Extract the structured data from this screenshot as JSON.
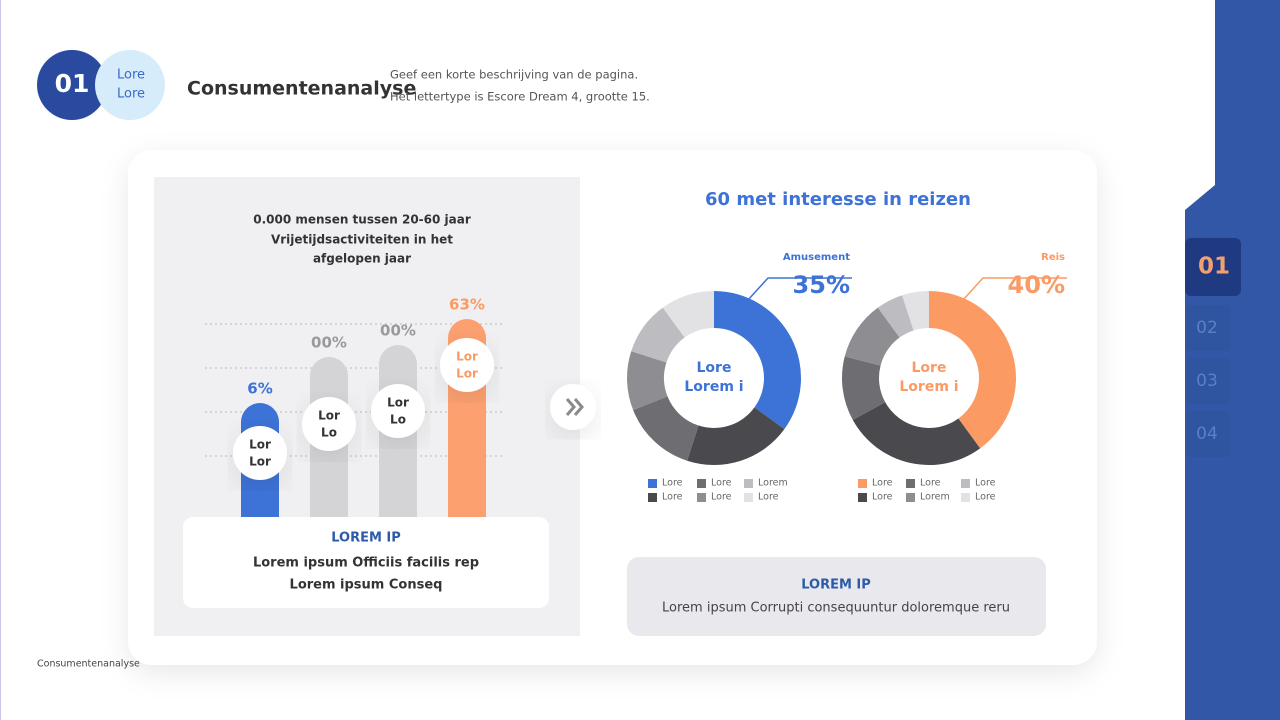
{
  "header": {
    "number": "01",
    "badge": [
      "Lore",
      "Lore"
    ],
    "title": "Consumentenanalyse",
    "description": [
      "Geef een korte beschrijving van de pagina.",
      "Het lettertype is Escore Dream 4, grootte 15."
    ]
  },
  "left_panel": {
    "title": [
      "0.000 mensen tussen 20-60 jaar",
      "Vrijetijdsactiviteiten in het",
      "afgelopen jaar"
    ],
    "bars": [
      {
        "label": "6%",
        "tag": [
          "Lor",
          "Lor"
        ]
      },
      {
        "label": "00%",
        "tag": [
          "Lor",
          "Lo"
        ]
      },
      {
        "label": "00%",
        "tag": [
          "Lor",
          "Lo"
        ]
      },
      {
        "label": "63%",
        "tag": [
          "Lor",
          "Lor"
        ]
      }
    ],
    "box": {
      "heading": "LOREM IP",
      "lines": [
        "Lorem ipsum Officiis facilis rep",
        "Lorem ipsum Conseq"
      ]
    }
  },
  "right_panel": {
    "title": "60 met interesse in reizen",
    "charts": [
      {
        "type": "pie",
        "callout": "Amusement",
        "center_label": [
          "Lore",
          "Lorem i"
        ],
        "categories": [
          "Lore",
          "Lore",
          "Lore",
          "Lore",
          "Lorem",
          "Lore"
        ],
        "values": [
          35,
          20,
          14,
          11,
          10,
          10
        ],
        "value_labels": [
          "35%",
          null,
          null,
          null,
          null,
          null
        ],
        "colors": [
          "#3d72d6",
          "#4a4a4e",
          "#6e6e72",
          "#8e8e92",
          "#bdbdc1",
          "#e2e2e4"
        ]
      },
      {
        "type": "pie",
        "callout": "Reis",
        "center_label": [
          "Lore",
          "Lorem i"
        ],
        "categories": [
          "Lore",
          "Lore",
          "Lore",
          "Lorem",
          "Lore",
          "Lore"
        ],
        "values": [
          40,
          27,
          12,
          11,
          5,
          5
        ],
        "value_labels": [
          "40%",
          null,
          null,
          null,
          null,
          null
        ],
        "colors": [
          "#fc9a64",
          "#4a4a4e",
          "#6e6e72",
          "#8e8e92",
          "#bdbdc1",
          "#e2e2e4"
        ]
      }
    ],
    "box": {
      "heading": "LOREM IP",
      "text": "Lorem ipsum Corrupti consequuntur doloremque reru"
    }
  },
  "footer": "Consumentenanalyse",
  "nav": [
    "01",
    "02",
    "03",
    "04"
  ]
}
